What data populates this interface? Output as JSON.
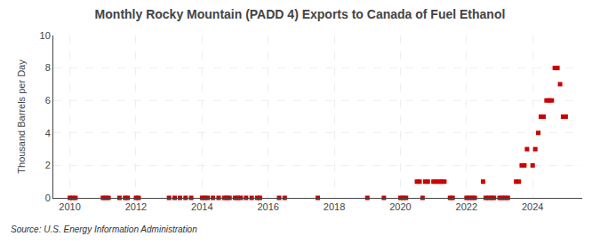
{
  "chart_data": {
    "type": "scatter",
    "title": "Monthly Rocky Mountain (PADD 4) Exports to Canada of Fuel Ethanol",
    "ylabel": "Thousand Barrels per Day",
    "annotations": [
      "Source: U.S. Energy Information Administration"
    ],
    "x": [
      2010.0,
      2010.08,
      2010.17,
      2011.0,
      2011.08,
      2011.17,
      2011.5,
      2011.67,
      2011.75,
      2012.0,
      2012.08,
      2013.0,
      2013.17,
      2013.33,
      2013.5,
      2013.67,
      2014.0,
      2014.08,
      2014.17,
      2014.33,
      2014.5,
      2014.67,
      2014.75,
      2014.83,
      2015.0,
      2015.08,
      2015.17,
      2015.33,
      2015.5,
      2015.67,
      2015.75,
      2016.33,
      2016.5,
      2017.5,
      2019.0,
      2019.5,
      2020.0,
      2020.08,
      2020.17,
      2020.5,
      2020.58,
      2020.67,
      2020.75,
      2020.83,
      2021.0,
      2021.08,
      2021.17,
      2021.25,
      2021.33,
      2021.5,
      2021.58,
      2022.0,
      2022.08,
      2022.17,
      2022.25,
      2022.5,
      2022.58,
      2022.67,
      2022.75,
      2022.83,
      2023.0,
      2023.08,
      2023.17,
      2023.25,
      2023.5,
      2023.58,
      2023.67,
      2023.75,
      2023.83,
      2024.0,
      2024.08,
      2024.17,
      2024.25,
      2024.33,
      2024.42,
      2024.5,
      2024.58,
      2024.67,
      2024.75,
      2024.83,
      2024.92,
      2025.0
    ],
    "values": [
      0.0,
      0.0,
      0.0,
      0.0,
      0.0,
      0.0,
      0.0,
      0.0,
      0.0,
      0.0,
      0.0,
      0.0,
      0.0,
      0.0,
      0.0,
      0.0,
      0.0,
      0.0,
      0.0,
      0.0,
      0.0,
      0.0,
      0.0,
      0.0,
      0.0,
      0.0,
      0.0,
      0.0,
      0.0,
      0.0,
      0.0,
      0.0,
      0.0,
      0.0,
      0.0,
      0.0,
      0.0,
      0.0,
      0.0,
      1.0,
      1.0,
      0.0,
      1.0,
      1.0,
      1.0,
      1.0,
      1.0,
      1.0,
      1.0,
      0.0,
      0.0,
      0.0,
      0.0,
      0.0,
      0.0,
      1.0,
      0.0,
      0.0,
      0.0,
      0.0,
      0.0,
      0.0,
      0.0,
      0.0,
      1.0,
      1.0,
      2.0,
      2.0,
      3.0,
      2.0,
      3.0,
      4.0,
      5.0,
      5.0,
      6.0,
      6.0,
      6.0,
      8.0,
      8.0,
      7.0,
      5.0,
      5.0
    ],
    "color": "#cc0000",
    "marker": "square",
    "xlim": [
      2009.5,
      2025.5
    ],
    "xticks": [
      2010,
      2012,
      2014,
      2016,
      2018,
      2020,
      2022,
      2024
    ],
    "ylim": [
      0,
      10
    ],
    "yticks": [
      0,
      2,
      4,
      6,
      8,
      10
    ],
    "grid": true
  }
}
